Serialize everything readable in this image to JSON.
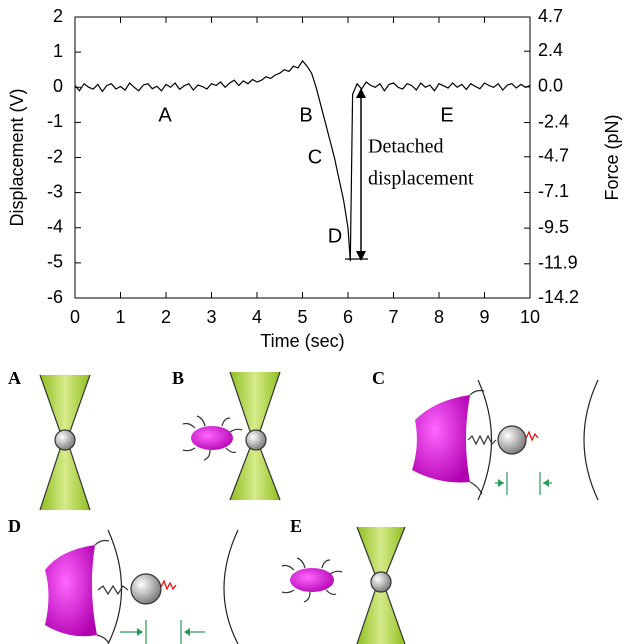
{
  "chart_data": {
    "type": "line",
    "x_label": "Time (sec)",
    "y_label": "Displacement (V)",
    "y2_label": "Force (pN)",
    "color": "#000000",
    "x": [
      0,
      0.1,
      0.2,
      0.3,
      0.4,
      0.5,
      0.6,
      0.7,
      0.8,
      0.9,
      1.0,
      1.1,
      1.2,
      1.3,
      1.4,
      1.5,
      1.6,
      1.7,
      1.8,
      1.9,
      2.0,
      2.1,
      2.2,
      2.3,
      2.4,
      2.5,
      2.6,
      2.7,
      2.8,
      2.9,
      3.0,
      3.1,
      3.2,
      3.3,
      3.4,
      3.5,
      3.6,
      3.7,
      3.8,
      3.9,
      4.0,
      4.1,
      4.2,
      4.3,
      4.4,
      4.5,
      4.6,
      4.7,
      4.8,
      4.9,
      5.0,
      5.1,
      5.2,
      5.3,
      5.4,
      5.5,
      5.6,
      5.7,
      5.8,
      5.9,
      6.0,
      6.05,
      6.1,
      6.2,
      6.3,
      6.4,
      6.5,
      6.6,
      6.7,
      6.8,
      6.9,
      7.0,
      7.1,
      7.2,
      7.3,
      7.4,
      7.5,
      7.6,
      7.7,
      7.8,
      7.9,
      8.0,
      8.1,
      8.2,
      8.3,
      8.4,
      8.5,
      8.6,
      8.7,
      8.8,
      8.9,
      9.0,
      9.1,
      9.2,
      9.3,
      9.4,
      9.5,
      9.6,
      9.7,
      9.8,
      9.9,
      10.0
    ],
    "values": [
      0.05,
      -0.1,
      0.1,
      0,
      -0.05,
      0.08,
      -0.12,
      0.05,
      0.1,
      -0.05,
      0.02,
      -0.08,
      0.12,
      0,
      -0.1,
      0.06,
      0.1,
      -0.04,
      0.03,
      -0.1,
      0.08,
      0,
      0.12,
      -0.06,
      0.04,
      0.1,
      -0.08,
      0.06,
      0.02,
      -0.05,
      0.1,
      0.05,
      0.15,
      0,
      0.12,
      0.2,
      0.05,
      0.18,
      0.1,
      0.22,
      0.15,
      0.2,
      0.3,
      0.25,
      0.35,
      0.4,
      0.5,
      0.45,
      0.6,
      0.55,
      0.75,
      0.6,
      0.4,
      0,
      -0.5,
      -1.0,
      -1.5,
      -2.0,
      -2.6,
      -3.2,
      -4.0,
      -4.95,
      -0.2,
      0.1,
      -0.05,
      0.15,
      0.05,
      0,
      0.1,
      -0.1,
      0.08,
      0.12,
      0,
      -0.05,
      0.1,
      0.05,
      -0.08,
      0.12,
      0,
      0.06,
      -0.1,
      0.1,
      0.04,
      -0.02,
      0.12,
      0,
      0.08,
      -0.06,
      0.1,
      0.02,
      -0.04,
      0.12,
      0.05,
      0,
      0.1,
      -0.08,
      0.06,
      0.1,
      -0.02,
      0.08,
      0,
      0.05
    ],
    "xlim": [
      0,
      10
    ],
    "xticks": [
      0,
      1,
      2,
      3,
      4,
      5,
      6,
      7,
      8,
      9,
      10
    ],
    "ylim": [
      -6,
      2
    ],
    "yticks": [
      -6,
      -5,
      -4,
      -3,
      -2,
      -1,
      0,
      1,
      2
    ],
    "y2lim": [
      -14.2,
      4.7
    ],
    "y2ticks": [
      -14.2,
      -11.9,
      -9.5,
      -7.1,
      -4.7,
      -2.4,
      {
        "value": 0,
        "label": "0.0"
      },
      2.4,
      4.7
    ],
    "annotations": [
      "A",
      "B",
      "C",
      "D",
      "E",
      "Detached",
      "displacement"
    ]
  },
  "panels": [
    "A",
    "B",
    "C",
    "D",
    "E"
  ]
}
